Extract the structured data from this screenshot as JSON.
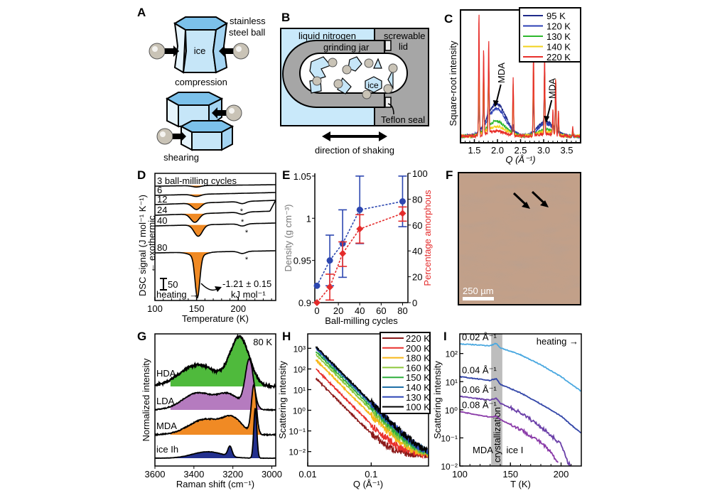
{
  "panels": {
    "A": {
      "label": "A",
      "ball_label_1": "stainless",
      "ball_label_2": "steel ball",
      "ice_label": "ice",
      "compression_label": "compression",
      "shearing_label": "shearing",
      "colors": {
        "ice_front": "#c6e6f8",
        "ice_top": "#7cc1ea",
        "ice_side": "#a4d4f2"
      }
    },
    "B": {
      "label": "B",
      "liquid_nitrogen": "liquid nitrogen",
      "screwable_1": "screwable",
      "screwable_2": "lid",
      "grinding_jar": "grinding jar",
      "ice": "ice",
      "teflon": "Teflon seal",
      "shaking": "direction of shaking",
      "colors": {
        "nitrogen": "#c9e9fa",
        "jar": "#a6a6a6",
        "ice": "#c6e6f8"
      }
    },
    "F": {
      "label": "F",
      "scale_bar": "250 µm",
      "colors": {
        "base": "#b08870",
        "dark": "#7f5a46",
        "light": "#c9a88e"
      }
    }
  },
  "chart_data": [
    {
      "id": "C",
      "type": "line",
      "title": "",
      "xlabel": "Q (Å⁻¹)",
      "ylabel": "Square-root intensity",
      "xlim": [
        1.2,
        3.8
      ],
      "xticks": [
        "1.5",
        "2.0",
        "2.5",
        "3.0",
        "3.5"
      ],
      "xtick_values": [
        1.5,
        2.0,
        2.5,
        3.0,
        3.5
      ],
      "legend": "top-right",
      "peaks": [
        1.6,
        1.7,
        1.81,
        2.34,
        2.78,
        3.02,
        3.2,
        3.26,
        3.32,
        3.63
      ],
      "series": [
        {
          "name": "95 K",
          "color": "#1f2a8a",
          "peak_heights": [
            0.38,
            0.35,
            0.4,
            0.0,
            0.0,
            0.42,
            0.0,
            0.38,
            0.0,
            0.0
          ],
          "halo": 0.26
        },
        {
          "name": "120 K",
          "color": "#2b3fb5",
          "peak_heights": [
            0.4,
            0.38,
            0.42,
            0.05,
            0.3,
            0.45,
            0.05,
            0.4,
            0.05,
            0.02
          ],
          "halo": 0.22
        },
        {
          "name": "130 K",
          "color": "#2db82d",
          "peak_heights": [
            0.6,
            0.55,
            0.5,
            0.4,
            0.55,
            0.5,
            0.1,
            0.42,
            0.15,
            0.05
          ],
          "halo": 0.12
        },
        {
          "name": "140 K",
          "color": "#f2d21c",
          "peak_heights": [
            0.62,
            0.58,
            0.55,
            0.4,
            0.6,
            0.52,
            0.1,
            0.45,
            0.15,
            0.05
          ],
          "halo": 0.08
        },
        {
          "name": "220 K",
          "color": "#e8302c",
          "peak_heights": [
            1.0,
            0.7,
            0.75,
            0.46,
            0.72,
            0.66,
            0.2,
            0.47,
            0.2,
            0.07
          ],
          "halo": 0.04
        }
      ],
      "annotations": [
        {
          "text": "MDA",
          "x": 1.95
        },
        {
          "text": "MDA",
          "x": 3.05
        }
      ]
    },
    {
      "id": "D",
      "type": "line",
      "xlabel": "Temperature (K)",
      "ylabel": "DSC signal (J mol⁻¹ K⁻¹)",
      "ylabel2": "← exothermic",
      "xlim": [
        100,
        245
      ],
      "xticks": [
        "100",
        "150",
        "200"
      ],
      "xtick_values": [
        100,
        150,
        200
      ],
      "scale_bar": "50",
      "heating": "heating →",
      "enthalpy_1": "-1.21 ± 0.15",
      "enthalpy_2": "kJ mol⁻¹",
      "fill_color": "#f08a24",
      "series": [
        {
          "name": "3 ball-milling cycles",
          "peak_depth": 2,
          "peak_T": 150
        },
        {
          "name": "6",
          "peak_depth": 3,
          "peak_T": 150
        },
        {
          "name": "12",
          "peak_depth": 9,
          "peak_T": 150
        },
        {
          "name": "24",
          "peak_depth": 12,
          "peak_T": 148
        },
        {
          "name": "40",
          "peak_depth": 16,
          "peak_T": 152
        },
        {
          "name": "80",
          "peak_depth": 58,
          "peak_T": 151
        }
      ],
      "asterisk": "*"
    },
    {
      "id": "E",
      "type": "scatter",
      "xlabel": "Ball-milling cycles",
      "ylabel": "Density (g cm⁻³)",
      "ylabel2": "Percentage amorphous",
      "xlim": [
        0,
        85
      ],
      "ylim": [
        0.9,
        1.06
      ],
      "y2lim": [
        0,
        100
      ],
      "xticks": [
        "0",
        "20",
        "40",
        "60",
        "80"
      ],
      "xtick_values": [
        0,
        20,
        40,
        60,
        80
      ],
      "yticks": [
        "0.9",
        "0.95",
        "1",
        "1.05"
      ],
      "ytick_values": [
        0.9,
        0.95,
        1.0,
        1.05
      ],
      "y2ticks": [
        "0",
        "20",
        "40",
        "60",
        "80",
        "100"
      ],
      "y2tick_values": [
        0,
        20,
        40,
        60,
        80,
        100
      ],
      "series": [
        {
          "name": "Density",
          "color": "#2d47b0",
          "axis": "left",
          "x": [
            0,
            12,
            24,
            40,
            80
          ],
          "y": [
            0.92,
            0.95,
            0.97,
            1.01,
            1.02
          ],
          "err_low": [
            0.92,
            0.92,
            0.93,
            0.97,
            0.99
          ],
          "err_high": [
            0.92,
            0.98,
            1.01,
            1.05,
            1.05
          ]
        },
        {
          "name": "Percentage amorphous",
          "color": "#e42b2b",
          "axis": "right",
          "x": [
            0,
            12,
            24,
            40,
            80
          ],
          "y": [
            0,
            12,
            38,
            57,
            69
          ],
          "err_low": [
            0,
            2,
            28,
            46,
            63
          ],
          "err_high": [
            0,
            22,
            47,
            68,
            74
          ]
        }
      ]
    },
    {
      "id": "G",
      "type": "area",
      "xlabel": "Raman shift (cm⁻¹)",
      "ylabel": "Normalized intensity",
      "xlim": [
        3600,
        2980
      ],
      "xticks": [
        "3600",
        "3400",
        "3200",
        "3000"
      ],
      "xtick_values": [
        3600,
        3400,
        3200,
        3000
      ],
      "annotation": "80 K",
      "series": [
        {
          "name": "HDA",
          "color": "#4fba3c",
          "peak": 3155
        },
        {
          "name": "LDA",
          "color": "#b57bbf",
          "peak": 3115
        },
        {
          "name": "MDA",
          "color": "#f08a24",
          "peak": 3095
        },
        {
          "name": "ice Ih",
          "color": "#23308e",
          "peak": 3085
        }
      ]
    },
    {
      "id": "H",
      "type": "line",
      "xscale": "log",
      "yscale": "log",
      "xlabel": "Q (Å⁻¹)",
      "ylabel": "Scattering intensity",
      "xlim": [
        0.01,
        0.8
      ],
      "ylim": [
        0.002,
        5000
      ],
      "xticks": [
        "0.01",
        "0.1"
      ],
      "xtick_values": [
        0.01,
        0.1
      ],
      "yticks": [
        "10⁻²",
        "10⁻¹",
        "10⁰",
        "10¹",
        "10²",
        "10³"
      ],
      "ytick_values": [
        0.01,
        0.1,
        1,
        10,
        100,
        1000
      ],
      "legend": "top-right",
      "series": [
        {
          "name": "220 K",
          "color": "#8b1a1a",
          "I0": 35
        },
        {
          "name": "200 K",
          "color": "#e8302c",
          "I0": 100
        },
        {
          "name": "180 K",
          "color": "#f7b718",
          "I0": 280
        },
        {
          "name": "160 K",
          "color": "#8cc83c",
          "I0": 500
        },
        {
          "name": "150 K",
          "color": "#2fae3c",
          "I0": 700
        },
        {
          "name": "140 K",
          "color": "#1f6fa6",
          "I0": 950
        },
        {
          "name": "130 K",
          "color": "#2f47b5",
          "I0": 1100
        },
        {
          "name": "100 K",
          "color": "#000000",
          "I0": 1200
        }
      ]
    },
    {
      "id": "I",
      "type": "line",
      "yscale": "log",
      "xlabel": "T (K)",
      "ylabel": "Scattering intensity",
      "xlim": [
        100,
        220
      ],
      "ylim": [
        0.01,
        500
      ],
      "xticks": [
        "100",
        "150",
        "200"
      ],
      "xtick_values": [
        100,
        150,
        200
      ],
      "yticks": [
        "10⁻²",
        "10⁻¹",
        "10⁰",
        "10¹",
        "10²"
      ],
      "ytick_values": [
        0.01,
        0.1,
        1,
        10,
        100
      ],
      "band": [
        131,
        142
      ],
      "band_label": "crystallization",
      "region_left": "MDA",
      "region_right": "ice I",
      "heating": "heating →",
      "series": [
        {
          "name": "0.02 Å⁻¹",
          "color": "#4aa8e0",
          "T": [
            100,
            130,
            136,
            140,
            160,
            180,
            200,
            220
          ],
          "I": [
            220,
            190,
            230,
            160,
            90,
            40,
            15,
            4.5
          ]
        },
        {
          "name": "0.04 Å⁻¹",
          "color": "#3346a8",
          "T": [
            100,
            130,
            136,
            140,
            160,
            180,
            200,
            212,
            220
          ],
          "I": [
            15,
            11,
            13,
            8,
            4,
            1.6,
            0.6,
            0.25,
            0.15
          ]
        },
        {
          "name": "0.06 Å⁻¹",
          "color": "#6a3fa8",
          "T": [
            100,
            130,
            136,
            140,
            160,
            180,
            200,
            206,
            210
          ],
          "I": [
            3,
            2.2,
            2.6,
            1.7,
            0.8,
            0.25,
            0.06,
            0.015,
            0.01
          ]
        },
        {
          "name": "0.08 Å⁻¹",
          "color": "#8a3aa8",
          "T": [
            100,
            130,
            136,
            140,
            160,
            180,
            190,
            197
          ],
          "I": [
            0.85,
            0.55,
            0.6,
            0.45,
            0.2,
            0.07,
            0.03,
            0.012
          ]
        }
      ]
    }
  ]
}
